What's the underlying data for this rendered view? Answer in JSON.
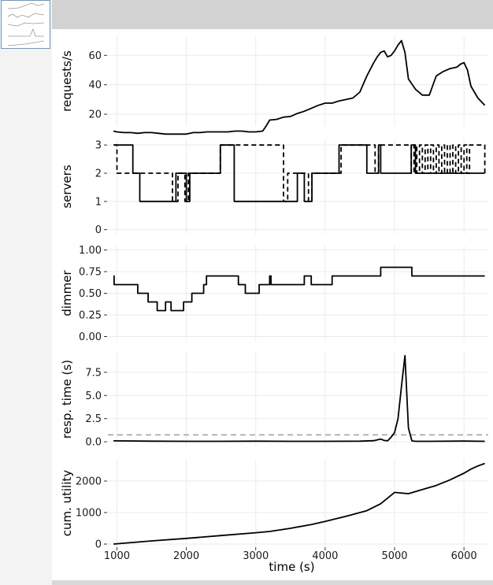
{
  "colors": {
    "line": "#000000",
    "grid": "#ebebeb",
    "reference": "#a6a6a6",
    "top_bar": "#d2d2d2"
  },
  "chart_data": {
    "type": "line",
    "x_label": "time (s)",
    "x_ticks": [
      1000,
      2000,
      3000,
      4000,
      5000,
      6000
    ],
    "xlim": [
      870,
      6350
    ],
    "grid": true,
    "panels": [
      {
        "id": "requests",
        "ylabel": "requests/s",
        "y_ticks": [
          20,
          40,
          60
        ],
        "ylim": [
          12,
          73
        ],
        "series": [
          {
            "style": "solid",
            "x": [
              950,
              1000,
              1100,
              1200,
              1300,
              1400,
              1500,
              1600,
              1700,
              1800,
              1900,
              2000,
              2100,
              2200,
              2300,
              2400,
              2500,
              2600,
              2700,
              2800,
              2900,
              3000,
              3100,
              3150,
              3200,
              3300,
              3400,
              3500,
              3600,
              3700,
              3800,
              3900,
              4000,
              4100,
              4200,
              4300,
              4400,
              4500,
              4600,
              4700,
              4750,
              4800,
              4850,
              4900,
              4950,
              5000,
              5050,
              5100,
              5150,
              5200,
              5300,
              5400,
              5500,
              5600,
              5700,
              5800,
              5900,
              5950,
              6000,
              6050,
              6100,
              6200,
              6300
            ],
            "y": [
              8.5,
              8,
              7.5,
              7.5,
              7,
              7.5,
              7.5,
              7,
              6.5,
              6.5,
              6.5,
              6.5,
              7.5,
              7.5,
              8,
              8,
              8,
              8,
              8.5,
              8.5,
              8,
              8,
              8.5,
              12,
              16,
              16.5,
              18,
              18.5,
              20.5,
              22,
              24,
              26,
              27.5,
              27.5,
              29,
              30,
              31,
              35,
              46,
              55,
              59,
              62,
              63,
              59,
              60,
              63,
              67,
              70,
              62,
              44,
              37,
              33,
              33,
              46,
              49,
              51,
              52,
              54,
              55,
              50,
              39,
              31,
              26
            ]
          }
        ]
      },
      {
        "id": "servers",
        "ylabel": "servers",
        "y_ticks": [
          0,
          1,
          2,
          3
        ],
        "ylim": [
          -0.15,
          3.2
        ],
        "series": [
          {
            "style": "solid",
            "step": true,
            "x": [
              960,
              1000,
              1230,
              1330,
              1850,
              2000,
              2050,
              2100,
              2490,
              2560,
              2690,
              3600,
              3700,
              3810,
              4200,
              4600,
              4770,
              4800,
              5240,
              5300,
              6300
            ],
            "y": [
              3,
              3,
              2,
              1,
              2,
              1,
              2,
              2,
              3,
              3,
              1,
              2,
              1,
              2,
              3,
              2,
              3,
              2,
              3,
              2,
              2
            ]
          },
          {
            "style": "dashed",
            "step": true,
            "x": [
              950,
              1000,
              1800,
              1880,
              1980,
              2030,
              2440,
              2490,
              3400,
              3460,
              3760,
              3810,
              4190,
              4230,
              4720,
              4770,
              5240,
              5280,
              5320,
              5360,
              5400,
              5440,
              5480,
              5520,
              5560,
              5600,
              5640,
              5680,
              5720,
              5760,
              5800,
              5840,
              5880,
              5920,
              5960,
              6000,
              6040,
              6080,
              6300
            ],
            "y": [
              3,
              2,
              1,
              2,
              1,
              2,
              2,
              3,
              1,
              2,
              1,
              2,
              2,
              3,
              2,
              3,
              2,
              3,
              2,
              3,
              2,
              3,
              2,
              3,
              2,
              3,
              2,
              3,
              2,
              3,
              2,
              3,
              2,
              3,
              2,
              3,
              2,
              3,
              2
            ]
          }
        ]
      },
      {
        "id": "dimmer",
        "ylabel": "dimmer",
        "y_ticks": [
          0,
          0.25,
          0.5,
          0.75,
          1
        ],
        "y_tick_labels": [
          "0.00",
          "0.25",
          "0.50",
          "0.75",
          "1.00"
        ],
        "ylim": [
          -0.05,
          1.05
        ],
        "series": [
          {
            "style": "solid",
            "step": true,
            "x": [
              950,
              960,
              1300,
              1450,
              1580,
              1700,
              1780,
              1830,
              1960,
              2080,
              2250,
              2290,
              2750,
              2850,
              3050,
              3200,
              3220,
              3300,
              3700,
              3800,
              3850,
              4100,
              4150,
              4600,
              4800,
              4950,
              5000,
              5050,
              5100,
              5150,
              5200,
              5250,
              6300
            ],
            "y": [
              0.7,
              0.6,
              0.5,
              0.4,
              0.3,
              0.4,
              0.3,
              0.3,
              0.4,
              0.5,
              0.6,
              0.7,
              0.6,
              0.5,
              0.6,
              0.7,
              0.6,
              0.6,
              0.7,
              0.6,
              0.6,
              0.7,
              0.7,
              0.7,
              0.8,
              0.8,
              0.8,
              0.8,
              0.8,
              0.8,
              0.8,
              0.7,
              0.7
            ]
          }
        ]
      },
      {
        "id": "response_time",
        "ylabel": "resp. time (s)",
        "y_ticks": [
          0,
          2.5,
          5,
          7.5
        ],
        "y_tick_labels": [
          "0.0",
          "2.5",
          "5.0",
          "7.5"
        ],
        "ylim": [
          -0.5,
          9.7
        ],
        "reference_line": 0.75,
        "series": [
          {
            "style": "solid",
            "x": [
              950,
              1500,
              2000,
              2500,
              3000,
              3500,
              4000,
              4500,
              4700,
              4800,
              4850,
              4900,
              4950,
              5000,
              5050,
              5100,
              5150,
              5200,
              5250,
              5300,
              5500,
              6000,
              6300
            ],
            "y": [
              0.1,
              0.07,
              0.05,
              0.05,
              0.07,
              0.05,
              0.05,
              0.07,
              0.12,
              0.3,
              0.15,
              0.1,
              0.5,
              1,
              2.5,
              6,
              9.3,
              1.5,
              0.1,
              0.05,
              0.05,
              0.08,
              0.05
            ]
          }
        ]
      },
      {
        "id": "cumulative_utility",
        "ylabel": "cum. utility",
        "y_ticks": [
          0,
          1000,
          2000
        ],
        "ylim": [
          -100,
          2700
        ],
        "series": [
          {
            "style": "solid",
            "x": [
              950,
              1500,
              2000,
              2500,
              3000,
              3200,
              3500,
              3800,
              4000,
              4300,
              4600,
              4800,
              5000,
              5200,
              5400,
              5600,
              5800,
              6000,
              6100,
              6200,
              6300
            ],
            "y": [
              0,
              100,
              180,
              270,
              360,
              400,
              500,
              620,
              720,
              880,
              1060,
              1280,
              1640,
              1600,
              1730,
              1860,
              2040,
              2250,
              2380,
              2480,
              2560
            ]
          }
        ]
      }
    ]
  }
}
